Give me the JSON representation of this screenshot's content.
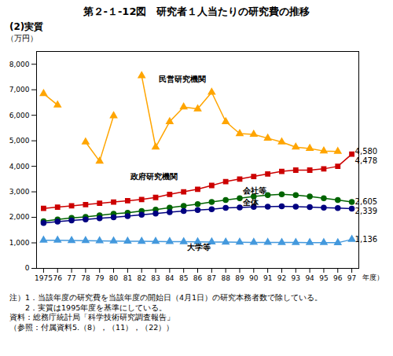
{
  "chart_data": {
    "type": "line",
    "title": "第２-１-12図　研究者１人当たりの研究費の推移",
    "subtitle": "(2)実質",
    "ylabel": "（万円）",
    "xlabel": "年度）",
    "x": [
      1975,
      1976,
      1977,
      1978,
      1979,
      1980,
      1981,
      1982,
      1983,
      1984,
      1985,
      1986,
      1987,
      1988,
      1989,
      1990,
      1991,
      1992,
      1993,
      1994,
      1995,
      1996,
      1997
    ],
    "series": [
      {
        "name": "民営研究機関",
        "color": "#FFA500",
        "marker": "triangle",
        "values": [
          6850,
          6400,
          null,
          4950,
          4200,
          5980,
          null,
          7550,
          4750,
          5750,
          6320,
          6250,
          6900,
          5750,
          5280,
          5250,
          5100,
          4950,
          4750,
          4700,
          4600,
          4580,
          null
        ]
      },
      {
        "name": "政府研究機関",
        "color": "#CC0000",
        "marker": "square",
        "values": [
          2350,
          2400,
          2450,
          2500,
          2550,
          2600,
          2650,
          2700,
          2780,
          2900,
          3000,
          3100,
          3250,
          3400,
          3500,
          3600,
          3700,
          3800,
          3850,
          3850,
          3900,
          4000,
          4478
        ]
      },
      {
        "name": "会社等",
        "color": "#006400",
        "marker": "circle",
        "values": [
          1850,
          1920,
          1980,
          2020,
          2080,
          2140,
          2180,
          2250,
          2300,
          2380,
          2450,
          2520,
          2600,
          2680,
          2750,
          2820,
          2870,
          2900,
          2870,
          2820,
          2750,
          2680,
          2605
        ]
      },
      {
        "name": "全体",
        "color": "#000080",
        "marker": "circle",
        "values": [
          1780,
          1830,
          1880,
          1920,
          1960,
          2000,
          2050,
          2100,
          2150,
          2200,
          2250,
          2290,
          2320,
          2370,
          2390,
          2410,
          2420,
          2430,
          2420,
          2400,
          2380,
          2360,
          2339
        ]
      },
      {
        "name": "大学等",
        "color": "#4499DD",
        "marker": "triangle",
        "values": [
          1100,
          1100,
          1090,
          1085,
          1080,
          1070,
          1065,
          1060,
          1055,
          1050,
          1045,
          1040,
          1035,
          1030,
          1025,
          1020,
          1018,
          1015,
          1013,
          1010,
          1008,
          1005,
          1136
        ]
      }
    ],
    "xlim": [
      1974.5,
      1997.5
    ],
    "xticks": [
      1975,
      {
        "value": 1976,
        "label": "76"
      },
      {
        "value": 1977,
        "label": "77"
      },
      {
        "value": 1978,
        "label": "78"
      },
      {
        "value": 1979,
        "label": "79"
      },
      {
        "value": 1980,
        "label": "80"
      },
      {
        "value": 1981,
        "label": "81"
      },
      {
        "value": 1982,
        "label": "82"
      },
      {
        "value": 1983,
        "label": "83"
      },
      {
        "value": 1984,
        "label": "84"
      },
      {
        "value": 1985,
        "label": "85"
      },
      {
        "value": 1986,
        "label": "86"
      },
      {
        "value": 1987,
        "label": "87"
      },
      {
        "value": 1988,
        "label": "88"
      },
      {
        "value": 1989,
        "label": "89"
      },
      {
        "value": 1990,
        "label": "90"
      },
      {
        "value": 1991,
        "label": "91"
      },
      {
        "value": 1992,
        "label": "92"
      },
      {
        "value": 1993,
        "label": "93"
      },
      {
        "value": 1994,
        "label": "94"
      },
      {
        "value": 1995,
        "label": "95"
      },
      {
        "value": 1996,
        "label": "96"
      },
      {
        "value": 1997,
        "label": "97"
      }
    ],
    "ylim": [
      0,
      8500
    ],
    "yticks": [
      0,
      {
        "value": 1000,
        "label": "1,000"
      },
      {
        "value": 2000,
        "label": "2,000"
      },
      {
        "value": 3000,
        "label": "3,000"
      },
      {
        "value": 4000,
        "label": "4,000"
      },
      {
        "value": 5000,
        "label": "5,000"
      },
      {
        "value": 6000,
        "label": "6,000"
      },
      {
        "value": 7000,
        "label": "7,000"
      },
      {
        "value": 8000,
        "label": "8,000"
      }
    ],
    "annotations": [
      {
        "text": "民営研究機関",
        "x": 1983,
        "y": 7400
      },
      {
        "text": "政府研究機関",
        "x": 1981,
        "y": 3600
      },
      {
        "text": "会社等",
        "x": 1989,
        "y": 3050
      },
      {
        "text": "全体",
        "x": 1989,
        "y": 2580
      },
      {
        "text": "大学等",
        "x": 1985,
        "y": 820
      },
      {
        "text": "4,580",
        "x": 1997,
        "y": 4580
      },
      {
        "text": "4,478",
        "x": 1997,
        "y": 4478
      },
      {
        "text": "2,605",
        "x": 1997,
        "y": 2605
      },
      {
        "text": "2,339",
        "x": 1997,
        "y": 2339
      },
      {
        "text": "1,136",
        "x": 1997,
        "y": 1136
      }
    ],
    "notes": [
      "注）1．当該年度の研究費を当該年度の開始日（4月1日）の研究本務者数で除している。",
      "　　2．実質は1995年度を基準にしている。",
      "資料：総務庁統計局「科学技術研究調査報告」",
      "（参照：付属資料5.（8），（11），（22））"
    ]
  }
}
